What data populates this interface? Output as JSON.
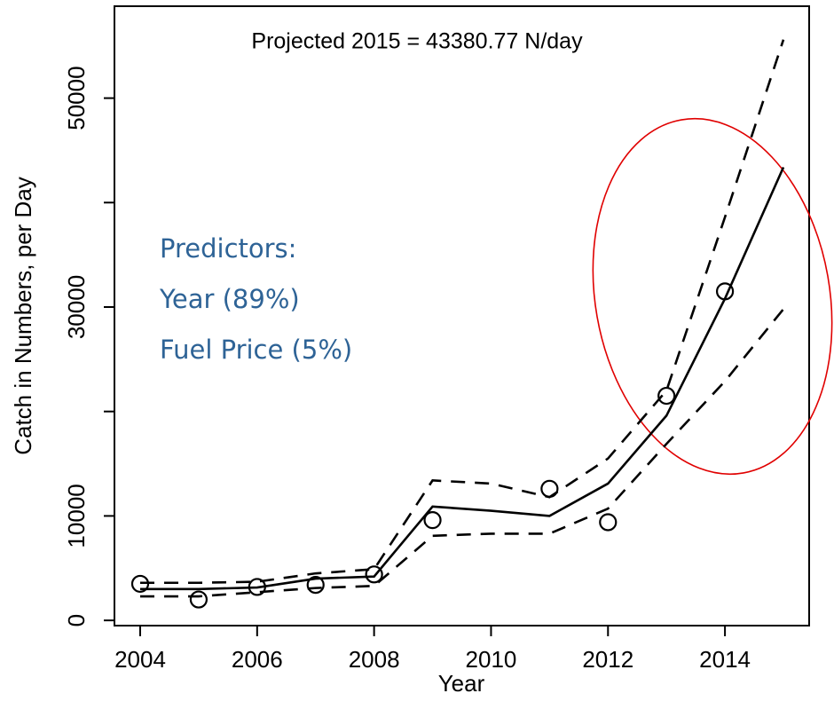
{
  "chart_data": {
    "type": "line",
    "title": "Projected 2015 =  43380.77  N/day",
    "annotation": [
      "Predictors:",
      "Year (89%)",
      "Fuel Price (5%)"
    ],
    "x_label": "Year",
    "y_label": "Catch in Numbers, per Day",
    "xlim": [
      2003.56,
      2015.44
    ],
    "xticks": [
      2004,
      2006,
      2008,
      2010,
      2012,
      2014
    ],
    "ylim": [
      -500,
      58800
    ],
    "yticks": [
      0,
      10000,
      {
        "value": 20000,
        "label": null
      },
      30000,
      {
        "value": 40000,
        "label": null
      },
      50000
    ],
    "series": [
      {
        "style": "points",
        "color": "#000000",
        "x": [
          2004,
          2005,
          2006,
          2007,
          2008,
          2009,
          2011,
          2012,
          2013,
          2014
        ],
        "values": [
          3500,
          2000,
          3200,
          3400,
          4400,
          9600,
          12600,
          9400,
          21500,
          31500
        ]
      },
      {
        "style": "solid",
        "color": "#000000",
        "x": [
          2004,
          2005,
          2006,
          2007,
          2008,
          2009,
          2010,
          2011,
          2012,
          2013,
          2014,
          2015
        ],
        "values": [
          3000,
          3000,
          3150,
          4000,
          4200,
          10900,
          10500,
          10000,
          13100,
          19600,
          30800,
          43380.77
        ]
      },
      {
        "style": "dashed",
        "color": "#000000",
        "x": [
          2004,
          2005,
          2006,
          2007,
          2008,
          2009,
          2010,
          2011,
          2012,
          2013,
          2014,
          2015
        ],
        "values": [
          3600,
          3600,
          3700,
          4500,
          4900,
          13400,
          13100,
          11800,
          15500,
          22000,
          38600,
          55600
        ]
      },
      {
        "style": "dashed",
        "color": "#000000",
        "x": [
          2004,
          2005,
          2006,
          2007,
          2008,
          2009,
          2010,
          2011,
          2012,
          2013,
          2014,
          2015
        ],
        "values": [
          2300,
          2300,
          2700,
          3100,
          3300,
          8100,
          8300,
          8300,
          10700,
          16900,
          22900,
          29800
        ]
      }
    ]
  }
}
